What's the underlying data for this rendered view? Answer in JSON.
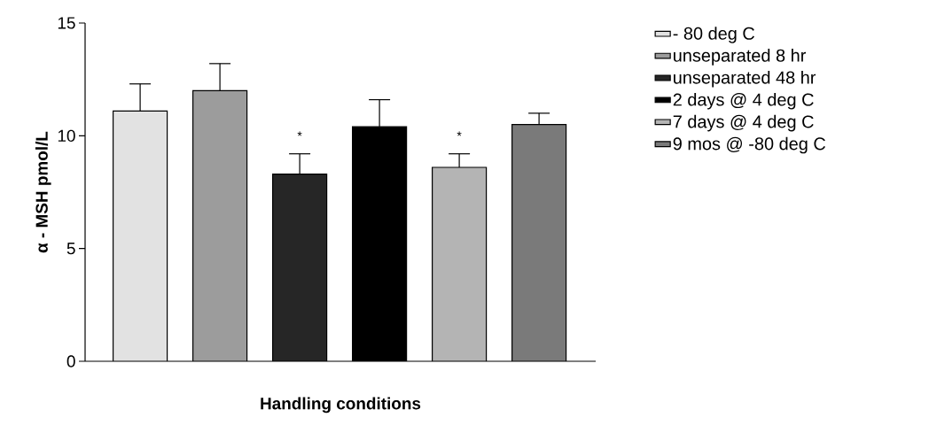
{
  "chart_data": {
    "type": "bar",
    "xlabel": "Handling conditions",
    "ylabel": "α - MSH pmol/L",
    "categories": [
      null,
      null,
      null,
      null,
      null,
      null
    ],
    "ylim": [
      0,
      15
    ],
    "yticks": [
      0,
      5,
      10,
      15
    ],
    "legend": "right",
    "grid": false,
    "annotations": [
      "*",
      "*"
    ],
    "series": [
      {
        "name": "- 80 deg C",
        "color": "#e2e2e2",
        "values": [
          11.1,
          null,
          null,
          null,
          null,
          null
        ],
        "errors": [
          1.2,
          null,
          null,
          null,
          null,
          null
        ]
      },
      {
        "name": "unseparated 8 hr",
        "color": "#9c9c9c",
        "values": [
          null,
          12.0,
          null,
          null,
          null,
          null
        ],
        "errors": [
          null,
          1.2,
          null,
          null,
          null,
          null
        ]
      },
      {
        "name": "unseparated 48 hr",
        "color": "#262626",
        "values": [
          null,
          null,
          8.3,
          null,
          null,
          null
        ],
        "errors": [
          null,
          null,
          0.9,
          null,
          null,
          null
        ]
      },
      {
        "name": "2 days @ 4 deg C",
        "color": "#000000",
        "values": [
          null,
          null,
          null,
          10.4,
          null,
          null
        ],
        "errors": [
          null,
          null,
          null,
          1.2,
          null,
          null
        ]
      },
      {
        "name": "7 days @ 4 deg C",
        "color": "#b4b4b4",
        "values": [
          null,
          null,
          null,
          null,
          8.6,
          null
        ],
        "errors": [
          null,
          null,
          null,
          null,
          0.6,
          null
        ]
      },
      {
        "name": "9 mos @ -80 deg C",
        "color": "#7a7a7a",
        "values": [
          null,
          null,
          null,
          null,
          null,
          10.5
        ],
        "errors": [
          null,
          null,
          null,
          null,
          null,
          0.5
        ]
      }
    ]
  }
}
